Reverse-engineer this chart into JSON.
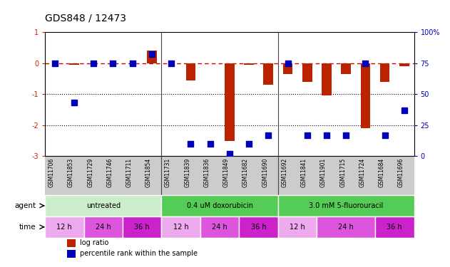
{
  "title": "GDS848 / 12473",
  "samples": [
    "GSM11706",
    "GSM11853",
    "GSM11729",
    "GSM11746",
    "GSM11711",
    "GSM11854",
    "GSM11731",
    "GSM11839",
    "GSM11836",
    "GSM11849",
    "GSM11682",
    "GSM11690",
    "GSM11692",
    "GSM11841",
    "GSM11901",
    "GSM11715",
    "GSM11724",
    "GSM11684",
    "GSM11696"
  ],
  "log_ratio": [
    0.0,
    -0.05,
    0.0,
    0.0,
    0.0,
    0.4,
    0.0,
    -0.55,
    0.0,
    -2.5,
    -0.05,
    -0.7,
    -0.35,
    -0.6,
    -1.05,
    -0.35,
    -2.1,
    -0.6,
    -0.1
  ],
  "pct_rank": [
    75,
    43,
    75,
    75,
    75,
    82,
    75,
    10,
    10,
    2,
    10,
    17,
    75,
    17,
    17,
    17,
    75,
    17,
    37
  ],
  "ylim_left": [
    -3,
    1
  ],
  "ylim_right": [
    0,
    100
  ],
  "right_ticks": [
    0,
    25,
    50,
    75,
    100
  ],
  "right_tick_labels": [
    "0",
    "25",
    "50",
    "75",
    "100%"
  ],
  "left_ticks": [
    -3,
    -2,
    -1,
    0,
    1
  ],
  "hline_zero": 0,
  "dotted_lines": [
    -1,
    -2
  ],
  "bar_color": "#bb2200",
  "dot_color": "#0000bb",
  "dashed_line_color": "#cc0000",
  "agent_groups": [
    {
      "label": "untreated",
      "start": 0,
      "end": 6,
      "color_light": "#cceecc",
      "color_dark": "#55cc55"
    },
    {
      "label": "0.4 uM doxorubicin",
      "start": 6,
      "end": 12,
      "color_light": "#55cc55",
      "color_dark": "#55cc55"
    },
    {
      "label": "3.0 mM 5-fluorouracil",
      "start": 12,
      "end": 19,
      "color_light": "#55cc55",
      "color_dark": "#55cc55"
    }
  ],
  "time_groups": [
    {
      "label": "12 h",
      "start": 0,
      "end": 2,
      "color": "#eeaaee"
    },
    {
      "label": "24 h",
      "start": 2,
      "end": 4,
      "color": "#dd55dd"
    },
    {
      "label": "36 h",
      "start": 4,
      "end": 6,
      "color": "#cc22cc"
    },
    {
      "label": "12 h",
      "start": 6,
      "end": 8,
      "color": "#eeaaee"
    },
    {
      "label": "24 h",
      "start": 8,
      "end": 10,
      "color": "#dd55dd"
    },
    {
      "label": "36 h",
      "start": 10,
      "end": 12,
      "color": "#cc22cc"
    },
    {
      "label": "12 h",
      "start": 12,
      "end": 14,
      "color": "#eeaaee"
    },
    {
      "label": "24 h",
      "start": 14,
      "end": 17,
      "color": "#dd55dd"
    },
    {
      "label": "36 h",
      "start": 17,
      "end": 19,
      "color": "#cc22cc"
    }
  ],
  "legend": [
    {
      "label": "log ratio",
      "color": "#bb2200"
    },
    {
      "label": "percentile rank within the sample",
      "color": "#0000bb"
    }
  ],
  "bg_color": "#ffffff",
  "right_tick_color": "#0000bb",
  "left_tick_color": "#cc2200",
  "bar_width": 0.5,
  "dot_size": 30,
  "sample_bg_color": "#cccccc",
  "sep_color": "#444444"
}
